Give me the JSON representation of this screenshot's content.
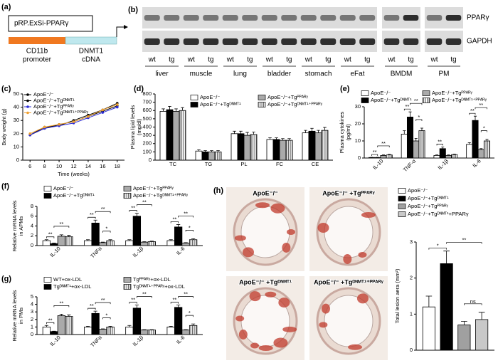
{
  "panel_labels": [
    "(a)",
    "(b)",
    "(c)",
    "(d)",
    "(e)",
    "(f)",
    "(g)",
    "(h)"
  ],
  "construct": {
    "vector": "pRP.ExSi-PPARγ",
    "promoter": [
      "CD11b",
      "promoter"
    ],
    "cdna": [
      "DNMT1",
      "cDNA"
    ]
  },
  "blot": {
    "rows": [
      "PPARγ",
      "GAPDH"
    ],
    "groups": [
      {
        "name": "liver",
        "lanes": [
          "wt",
          "tg"
        ]
      },
      {
        "name": "muscle",
        "lanes": [
          "wt",
          "tg"
        ]
      },
      {
        "name": "lung",
        "lanes": [
          "wt",
          "tg"
        ]
      },
      {
        "name": "bladder",
        "lanes": [
          "wt",
          "tg"
        ]
      },
      {
        "name": "stomach",
        "lanes": [
          "wt",
          "tg"
        ]
      },
      {
        "name": "eFat",
        "lanes": [
          "wt",
          "tg"
        ]
      },
      {
        "name": "BMDM",
        "lanes": [
          "wt",
          "tg"
        ]
      },
      {
        "name": "PM",
        "lanes": [
          "wt",
          "tg"
        ]
      }
    ]
  },
  "histology": {
    "images": [
      "ApoE⁻/⁻",
      "ApoE⁻/⁻ +Tgᴾᴾᴬᴿᵞ",
      "ApoE⁻/⁻ +Tgᴰᴺᴹᵀ¹",
      "ApoE⁻/⁻ +Tgᴰᴺᴹᵀ¹⁺ᴾᴾᴬᴿᵞ"
    ]
  },
  "chart_data": [
    {
      "type": "line",
      "xlabel": "Time (weeks)",
      "ylabel": [
        "Body weight (g)"
      ],
      "x": [
        6,
        8,
        10,
        12,
        14,
        16,
        18
      ],
      "xlim": [
        5,
        19
      ],
      "xticks": [
        6,
        8,
        10,
        12,
        14,
        16,
        18
      ],
      "ylim": [
        0,
        50
      ],
      "yticks": [
        0,
        10,
        20,
        30,
        40,
        50
      ],
      "legend": "top-left",
      "series": [
        {
          "name": "ApoE⁻/⁻",
          "color": "#000000",
          "values": [
            19,
            24,
            27,
            29,
            33,
            37,
            41
          ]
        },
        {
          "name": "ApoE⁻/⁻+Tgᴰᴺᴹᵀ¹",
          "color": "#000000",
          "values": [
            19,
            25,
            26,
            30,
            34,
            38,
            43
          ]
        },
        {
          "name": "ApoE⁻/⁻+Tgᴾᴾᴬᴿᵞ",
          "color": "#2b2bd6",
          "values": [
            19,
            24,
            26,
            28,
            32,
            36,
            40
          ]
        },
        {
          "name": "ApoE⁻/⁻+Tgᴰᴺᴹᵀ¹⁺ᴾᴾᴬᴿᵞ",
          "color": "#f0a030",
          "values": [
            20,
            25,
            27,
            29,
            33,
            38,
            42
          ]
        }
      ]
    },
    {
      "type": "bar",
      "ylabel": [
        "Plasma lipid levels",
        "(mg/dl)"
      ],
      "categories": [
        "TC",
        "TG",
        "PL",
        "FC",
        "CE"
      ],
      "ylim": [
        0,
        800
      ],
      "yticks": [
        0,
        100,
        200,
        300,
        400,
        500,
        600,
        700,
        800
      ],
      "legend": "top",
      "series": [
        {
          "name": "ApoE⁻/⁻",
          "color": "#ffffff",
          "values": [
            590,
            110,
            320,
            250,
            330
          ],
          "errors": [
            30,
            15,
            30,
            20,
            30
          ]
        },
        {
          "name": "ApoE⁻/⁻+Tgᴰᴺᴹᵀ¹",
          "color": "#000000",
          "values": [
            610,
            100,
            320,
            250,
            350
          ],
          "errors": [
            40,
            15,
            30,
            20,
            35
          ]
        },
        {
          "name": "ApoE⁻/⁻+Tgᴾᴾᴬᴿᵞ",
          "color": "#aaaaaa",
          "values": [
            590,
            100,
            300,
            240,
            330
          ],
          "errors": [
            30,
            15,
            35,
            20,
            30
          ]
        },
        {
          "name": "ApoE⁻/⁻+Tgᴰᴺᴹᵀ¹⁺ᴾᴾᴬᴿᵞ",
          "color": "#555555",
          "hatch": true,
          "values": [
            600,
            100,
            310,
            240,
            360
          ],
          "errors": [
            35,
            15,
            30,
            20,
            35
          ]
        }
      ]
    },
    {
      "type": "bar",
      "ylabel": [
        "Plasma cytokines",
        "(pg/ml)"
      ],
      "categories": [
        "IL-10",
        "TNF-α",
        "IL-1β",
        "IL-6"
      ],
      "xtick_rotation": 45,
      "ylim": [
        0,
        30
      ],
      "yticks": [
        0,
        10,
        20,
        30
      ],
      "legend": "top",
      "series": [
        {
          "name": "ApoE⁻/⁻",
          "color": "#ffffff",
          "values": [
            0.3,
            14,
            1.5,
            8
          ],
          "errors": [
            0.1,
            2,
            0.3,
            1
          ]
        },
        {
          "name": "ApoE⁻/⁻+Tgᴰᴺᴹᵀ¹",
          "color": "#000000",
          "values": [
            0.3,
            24,
            5.5,
            22
          ],
          "errors": [
            0.1,
            3,
            1,
            2.5
          ]
        },
        {
          "name": "ApoE⁻/⁻+Tgᴾᴾᴬᴿᵞ",
          "color": "#aaaaaa",
          "values": [
            1.5,
            10,
            1.5,
            5
          ],
          "errors": [
            0.3,
            1.5,
            0.3,
            0.5
          ]
        },
        {
          "name": "ApoE⁻/⁻+Tgᴰᴺᴹᵀ¹⁺ᴾᴾᴬᴿᵞ",
          "color": "#555555",
          "hatch": true,
          "values": [
            1.8,
            16,
            2,
            10
          ],
          "errors": [
            0.3,
            1.5,
            0.3,
            1
          ]
        }
      ],
      "significance": [
        {
          "label": "**",
          "category": 0,
          "series": [
            0,
            1
          ]
        },
        {
          "label": "**",
          "category": 0,
          "series": [
            1,
            3
          ]
        },
        {
          "label": "**",
          "category": 1,
          "series": [
            0,
            1
          ]
        },
        {
          "label": "**",
          "category": 1,
          "series": [
            1,
            3
          ]
        },
        {
          "label": "*",
          "category": 1,
          "series": [
            2,
            3
          ]
        },
        {
          "label": "**",
          "category": 2,
          "series": [
            0,
            1
          ]
        },
        {
          "label": "**",
          "category": 3,
          "series": [
            0,
            1
          ]
        },
        {
          "label": "**",
          "category": 3,
          "series": [
            1,
            3
          ]
        },
        {
          "label": "*",
          "category": 3,
          "series": [
            2,
            3
          ]
        }
      ]
    },
    {
      "type": "bar",
      "ylabel": [
        "Relative mRNA levels",
        "in APMs"
      ],
      "categories": [
        "IL-10",
        "TNFα",
        "IL-1β",
        "IL-6"
      ],
      "xtick_rotation": 45,
      "ylim": [
        0,
        8
      ],
      "yticks": [
        0,
        2,
        4,
        6,
        8
      ],
      "legend": "top",
      "series": [
        {
          "name": "ApoE⁻/⁻",
          "color": "#ffffff",
          "values": [
            1,
            1,
            1,
            1
          ],
          "errors": [
            0.2,
            0.2,
            0.2,
            0.2
          ]
        },
        {
          "name": "ApoE⁻/⁻+Tgᴰᴺᴹᵀ¹",
          "color": "#000000",
          "values": [
            0.4,
            4.6,
            6,
            3.8
          ],
          "errors": [
            0.1,
            0.6,
            0.6,
            0.5
          ]
        },
        {
          "name": "ApoE⁻/⁻+Tgᴾᴾᴬᴿᵞ",
          "color": "#aaaaaa",
          "values": [
            1.9,
            0.6,
            0.7,
            0.5
          ],
          "errors": [
            0.3,
            0.1,
            0.1,
            0.1
          ]
        },
        {
          "name": "ApoE⁻/⁻+Tgᴰᴺᴹᵀ¹⁺ᴾᴾᴬᴿᵞ",
          "color": "#555555",
          "hatch": true,
          "values": [
            1.8,
            1,
            0.8,
            1.2
          ],
          "errors": [
            0.3,
            0.2,
            0.1,
            0.2
          ]
        }
      ],
      "significance": [
        {
          "label": "**",
          "category": 0,
          "series": [
            0,
            1
          ]
        },
        {
          "label": "**",
          "category": 0,
          "series": [
            1,
            3
          ]
        },
        {
          "label": "**",
          "category": 1,
          "series": [
            0,
            1
          ]
        },
        {
          "label": "**",
          "category": 1,
          "series": [
            1,
            3
          ]
        },
        {
          "label": "*",
          "category": 1,
          "series": [
            2,
            3
          ]
        },
        {
          "label": "**",
          "category": 2,
          "series": [
            0,
            1
          ]
        },
        {
          "label": "**",
          "category": 2,
          "series": [
            1,
            3
          ]
        },
        {
          "label": "**",
          "category": 3,
          "series": [
            0,
            1
          ]
        },
        {
          "label": "**",
          "category": 3,
          "series": [
            1,
            3
          ]
        },
        {
          "label": "*",
          "category": 3,
          "series": [
            2,
            3
          ]
        }
      ]
    },
    {
      "type": "bar",
      "ylabel": [
        "Relative mRNA levels",
        "in PMs"
      ],
      "categories": [
        "IL-10",
        "TNFα",
        "IL-1β",
        "IL-6"
      ],
      "xtick_rotation": 45,
      "ylim": [
        0,
        5
      ],
      "yticks": [
        0,
        1,
        2,
        3,
        4,
        5
      ],
      "legend": "top",
      "series": [
        {
          "name": "WT+ox-LDL",
          "color": "#ffffff",
          "values": [
            1,
            1,
            1,
            1
          ],
          "errors": [
            0.2,
            0.1,
            0.2,
            0.1
          ]
        },
        {
          "name": "Tgᴰᴺᴹᵀ¹+ox-LDL",
          "color": "#000000",
          "values": [
            0.4,
            2.8,
            3.5,
            3.6
          ],
          "errors": [
            0.05,
            0.3,
            0.4,
            0.3
          ]
        },
        {
          "name": "Tgᴾᴾᴬᴿᵞ+ox-LDL",
          "color": "#aaaaaa",
          "values": [
            2.5,
            0.7,
            0.6,
            0.6
          ],
          "errors": [
            0.2,
            0.05,
            0.05,
            0.05
          ]
        },
        {
          "name": "Tgᴰᴺᴹᵀ¹⁺ᴾᴾᴬᴿᵞ+ox-LDL",
          "color": "#555555",
          "hatch": true,
          "values": [
            2.4,
            1,
            0.6,
            1.2
          ],
          "errors": [
            0.2,
            0.1,
            0.05,
            0.2
          ]
        }
      ],
      "significance": [
        {
          "label": "**",
          "category": 0,
          "series": [
            0,
            1
          ]
        },
        {
          "label": "**",
          "category": 0,
          "series": [
            1,
            3
          ]
        },
        {
          "label": "**",
          "category": 1,
          "series": [
            0,
            1
          ]
        },
        {
          "label": "**",
          "category": 1,
          "series": [
            1,
            3
          ]
        },
        {
          "label": "*",
          "category": 1,
          "series": [
            2,
            3
          ]
        },
        {
          "label": "**",
          "category": 2,
          "series": [
            0,
            1
          ]
        },
        {
          "label": "**",
          "category": 2,
          "series": [
            1,
            3
          ]
        },
        {
          "label": "**",
          "category": 3,
          "series": [
            0,
            1
          ]
        },
        {
          "label": "**",
          "category": 3,
          "series": [
            1,
            3
          ]
        },
        {
          "label": "*",
          "category": 3,
          "series": [
            2,
            3
          ]
        }
      ]
    },
    {
      "type": "bar",
      "ylabel": [
        "Total lesion aera (mm²)"
      ],
      "categories": [
        null
      ],
      "ylim": [
        0,
        3
      ],
      "yticks": [
        0,
        1,
        2,
        3
      ],
      "legend": "top-left",
      "series": [
        {
          "name": "ApoE⁻/⁻",
          "color": "#ffffff",
          "values": [
            1.2
          ],
          "errors": [
            0.3
          ]
        },
        {
          "name": "ApoE⁻/⁻+Tgᴰᴺᴹᵀ¹",
          "color": "#000000",
          "values": [
            2.4
          ],
          "errors": [
            0.35
          ]
        },
        {
          "name": "ApoE⁻/⁻+Tgᴾᴾᴬᴿᵞ",
          "color": "#a0a0a0",
          "values": [
            0.7
          ],
          "errors": [
            0.1
          ]
        },
        {
          "name": "ApoE⁻/⁻+Tgᴰᴺᴹᵀ¹+PPARγ",
          "color": "#c8c8c8",
          "values": [
            0.85
          ],
          "errors": [
            0.2
          ]
        }
      ],
      "significance": [
        {
          "label": "*",
          "category": 0,
          "series": [
            0,
            1
          ]
        },
        {
          "label": "**",
          "category": 0,
          "series": [
            1,
            3
          ]
        },
        {
          "label": "ns",
          "category": 0,
          "series": [
            2,
            3
          ]
        }
      ]
    }
  ]
}
